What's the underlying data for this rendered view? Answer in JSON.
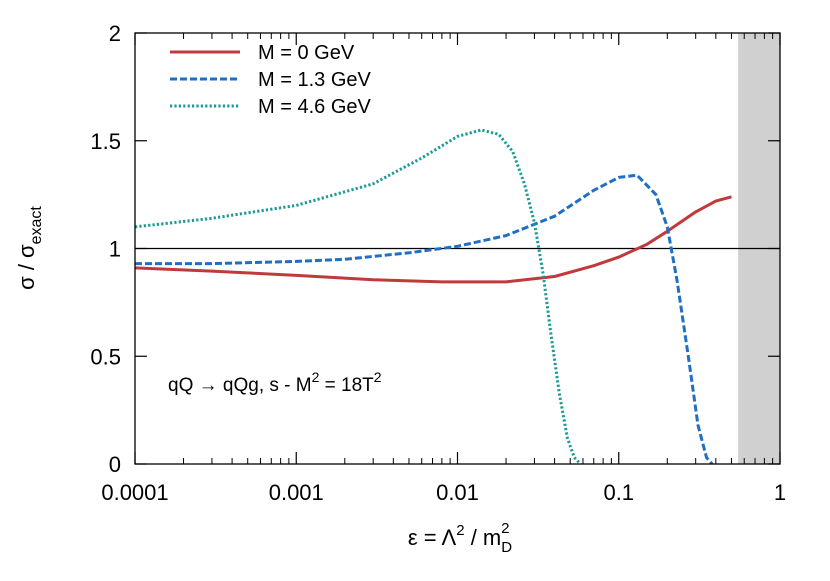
{
  "chart_data": {
    "type": "line",
    "title": "",
    "x_scale": "log",
    "xlim": [
      0.0001,
      1
    ],
    "ylim": [
      0,
      2
    ],
    "x_ticks": [
      "0.0001",
      "0.001",
      "0.01",
      "0.1",
      "1"
    ],
    "y_ticks": [
      "0",
      "0.5",
      "1",
      "1.5",
      "2"
    ],
    "xlabel_parts": {
      "pre": "ε = Λ",
      "sup": "2",
      "mid": " / m",
      "sub": "D",
      "sup2": "2"
    },
    "ylabel_parts": {
      "pre": "σ / σ",
      "sub": "exact"
    },
    "reference_line_y": 1,
    "shaded_region": {
      "x_from": 0.55,
      "x_to": 1,
      "color": "#d0d0d0"
    },
    "annotation": {
      "text": "qQ → qQg,   s - M",
      "sup": "2",
      "rest": " = 18T",
      "sup2": "2"
    },
    "legend_position": "top-left",
    "grid": false,
    "series": [
      {
        "name": "M = 0 GeV",
        "color": "#c0393b",
        "dash": "solid",
        "x": [
          0.0001,
          0.0003,
          0.001,
          0.003,
          0.008,
          0.02,
          0.04,
          0.07,
          0.1,
          0.15,
          0.2,
          0.3,
          0.4,
          0.5
        ],
        "y": [
          0.91,
          0.895,
          0.875,
          0.855,
          0.845,
          0.845,
          0.87,
          0.92,
          0.96,
          1.02,
          1.08,
          1.17,
          1.22,
          1.24
        ]
      },
      {
        "name": "M = 1.3 GeV",
        "color": "#1f6fc5",
        "dash": "dashed",
        "x": [
          0.0001,
          0.0003,
          0.001,
          0.002,
          0.005,
          0.01,
          0.02,
          0.04,
          0.07,
          0.1,
          0.13,
          0.17,
          0.2,
          0.23,
          0.27,
          0.31,
          0.35,
          0.38
        ],
        "y": [
          0.93,
          0.93,
          0.94,
          0.95,
          0.98,
          1.01,
          1.06,
          1.15,
          1.27,
          1.33,
          1.34,
          1.25,
          1.1,
          0.85,
          0.5,
          0.18,
          0.03,
          0.0
        ]
      },
      {
        "name": "M = 4.6 GeV",
        "color": "#1a9a96",
        "dash": "dotted",
        "x": [
          0.0001,
          0.0003,
          0.001,
          0.003,
          0.006,
          0.01,
          0.014,
          0.018,
          0.022,
          0.026,
          0.03,
          0.034,
          0.038,
          0.043,
          0.048,
          0.053,
          0.058
        ],
        "y": [
          1.1,
          1.14,
          1.2,
          1.3,
          1.42,
          1.52,
          1.55,
          1.53,
          1.45,
          1.3,
          1.12,
          0.88,
          0.6,
          0.32,
          0.12,
          0.03,
          0.0
        ]
      }
    ]
  }
}
